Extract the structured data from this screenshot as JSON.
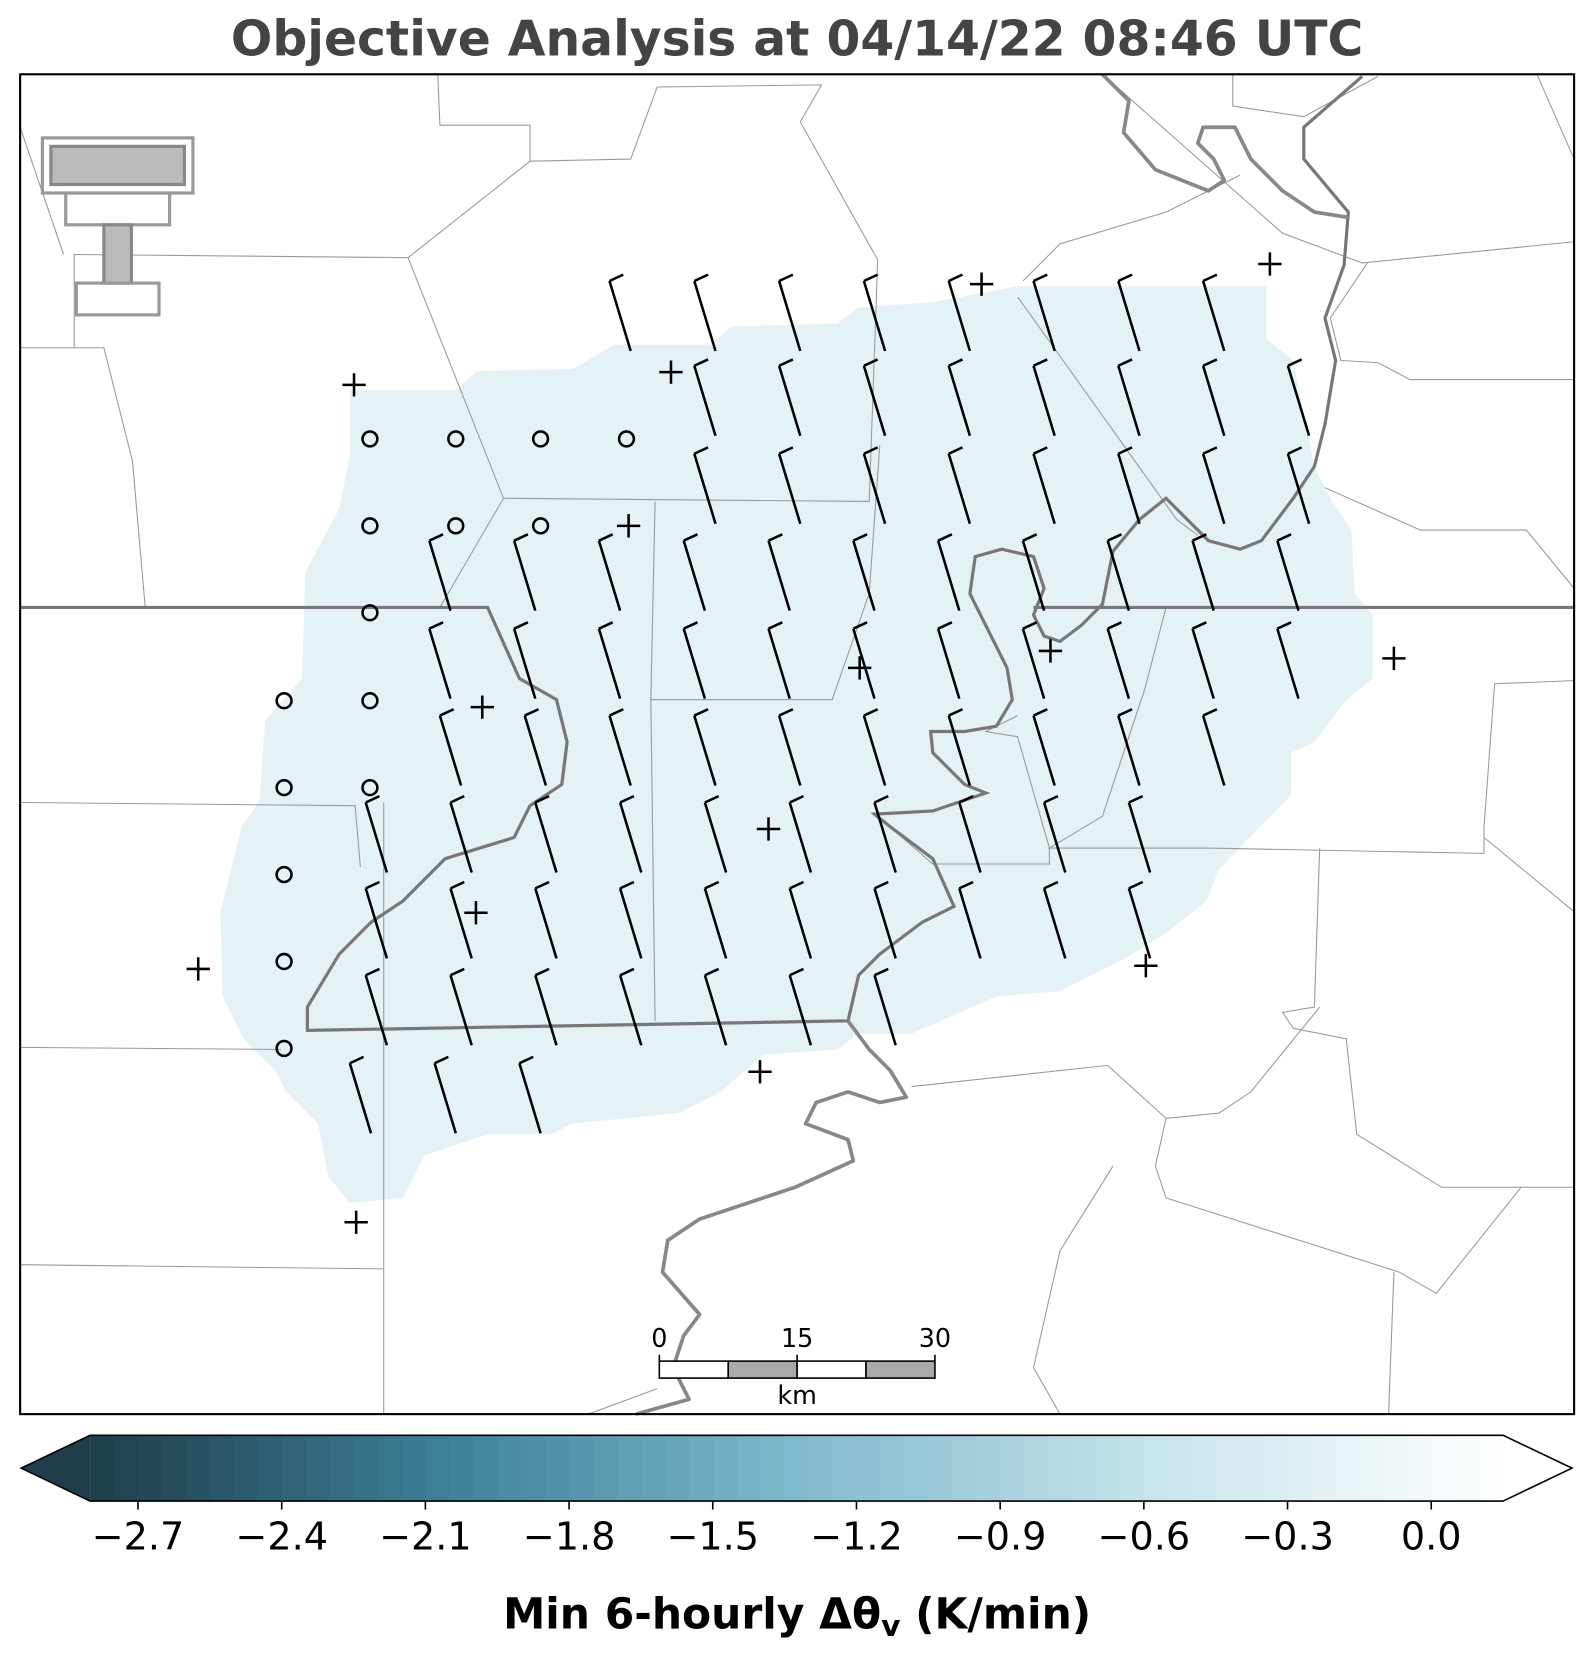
{
  "title": "Objective Analysis at 04/14/22 08:46 UTC",
  "colorbar": {
    "clim": [
      -2.8,
      0.15
    ],
    "colors": [
      "#1f3d4a",
      "#3d8097",
      "#7fb9cc",
      "#c7e4ec",
      "#ffffff"
    ],
    "ticks": [
      {
        "value": -2.7,
        "label": "−2.7"
      },
      {
        "value": -2.4,
        "label": "−2.4"
      },
      {
        "value": -2.1,
        "label": "−2.1"
      },
      {
        "value": -1.8,
        "label": "−1.8"
      },
      {
        "value": -1.5,
        "label": "−1.5"
      },
      {
        "value": -1.2,
        "label": "−1.2"
      },
      {
        "value": -0.9,
        "label": "−0.9"
      },
      {
        "value": -0.6,
        "label": "−0.6"
      },
      {
        "value": -0.3,
        "label": "−0.3"
      },
      {
        "value": 0.0,
        "label": "0.0"
      }
    ],
    "label": [
      "Min 6-hourly Δθ",
      "v",
      " (K/min)"
    ]
  },
  "scale_bar": {
    "ticks": [
      0,
      15,
      30
    ],
    "unit": "km"
  }
}
